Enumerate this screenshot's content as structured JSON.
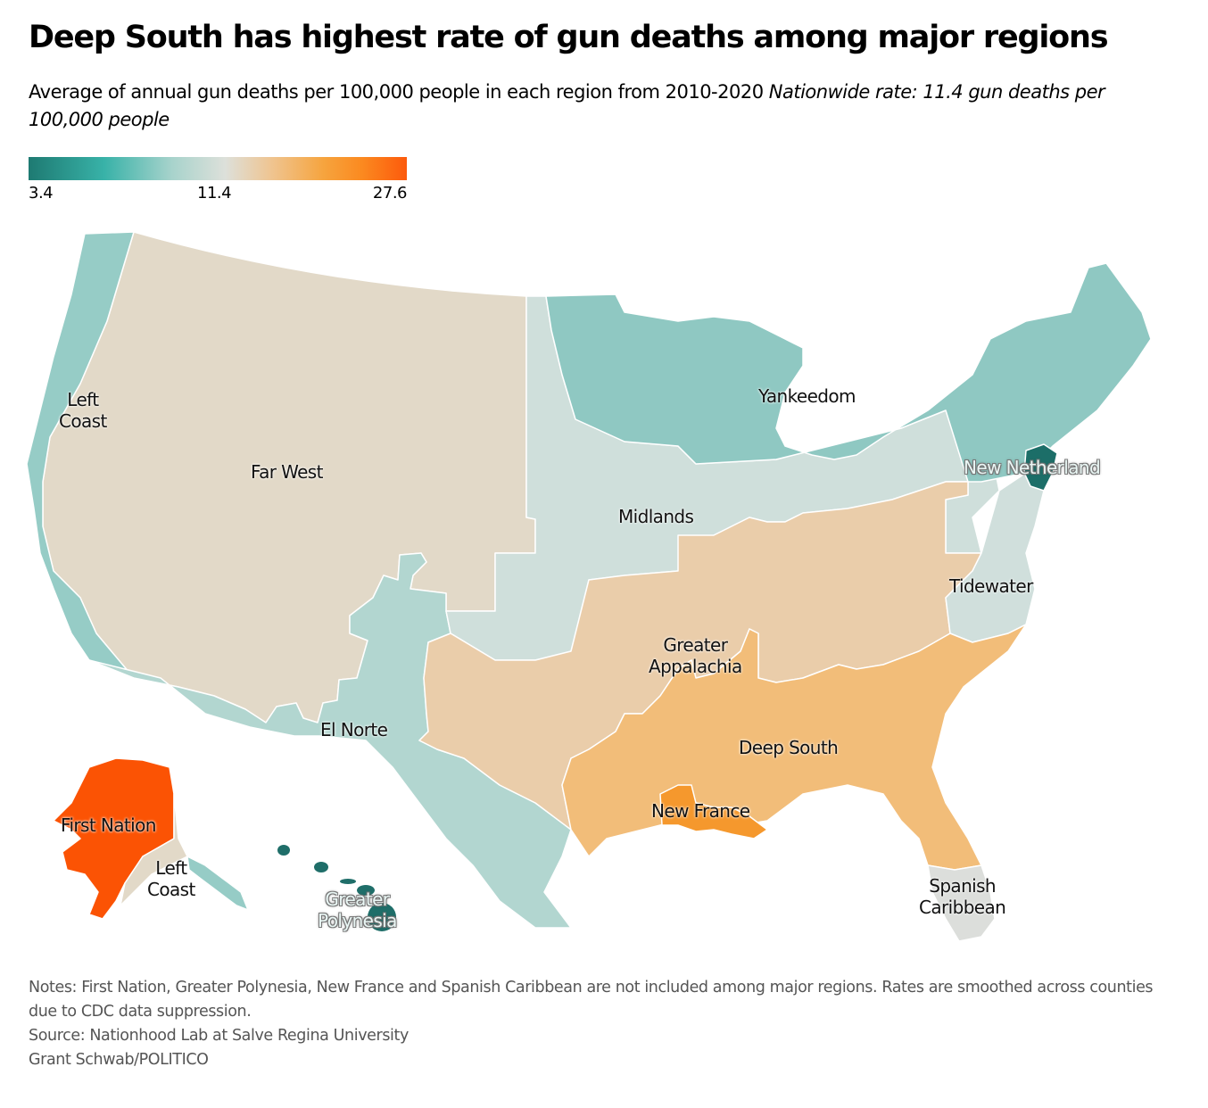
{
  "header": {
    "title": "Deep South has highest rate of gun deaths among major regions",
    "subtitle": "Average of annual gun deaths per 100,000 people in each region from 2010-2020",
    "subtitle_italic": "Nationwide rate: 11.4 gun deaths per 100,000 people"
  },
  "legend": {
    "min_label": "3.4",
    "mid_label": "11.4",
    "max_label": "27.6",
    "min": 3.4,
    "mid": 11.4,
    "max": 27.6,
    "colors": [
      "#1e7a72",
      "#38b2a8",
      "#dde0da",
      "#f6a43e",
      "#fc5a0c"
    ]
  },
  "map": {
    "regions": [
      {
        "id": "left-coast",
        "label": "Left Coast",
        "line1": "Left",
        "line2": "Coast",
        "color": "#96ccc6"
      },
      {
        "id": "far-west",
        "label": "Far West",
        "color": "#e2d9c8"
      },
      {
        "id": "yankeedom",
        "label": "Yankeedom",
        "color": "#8fc8c2"
      },
      {
        "id": "new-netherland",
        "label": "New Netherland",
        "color": "#1c6e68"
      },
      {
        "id": "midlands",
        "label": "Midlands",
        "color": "#cfdfdb"
      },
      {
        "id": "tidewater",
        "label": "Tidewater",
        "color": "#d0dfdc"
      },
      {
        "id": "greater-appalachia",
        "label": "Greater Appalachia",
        "line1": "Greater",
        "line2": "Appalachia",
        "color": "#eacdaa"
      },
      {
        "id": "el-norte",
        "label": "El Norte",
        "color": "#b2d6d0"
      },
      {
        "id": "deep-south",
        "label": "Deep South",
        "color": "#f2bd79"
      },
      {
        "id": "new-france",
        "label": "New France",
        "color": "#f5982d"
      },
      {
        "id": "spanish-caribbean",
        "label": "Spanish Caribbean",
        "line1": "Spanish",
        "line2": "Caribbean",
        "color": "#dcdedb"
      },
      {
        "id": "first-nation",
        "label": "First Nation",
        "color": "#fb5304"
      },
      {
        "id": "greater-polynesia",
        "label": "Greater Polynesia",
        "line1": "Greater",
        "line2": "Polynesia",
        "color": "#1f6e69"
      },
      {
        "id": "alaska-left-coast",
        "label": "Left Coast",
        "line1": "Left",
        "line2": "Coast",
        "color": "#e2d9c8"
      }
    ]
  },
  "footer": {
    "notes": "Notes: First Nation, Greater Polynesia, New France and Spanish Caribbean are not included among major regions. Rates are smoothed across counties due to CDC data suppression.",
    "source": "Source: Nationhood Lab at Salve Regina University",
    "credit": "Grant Schwab/POLITICO"
  }
}
